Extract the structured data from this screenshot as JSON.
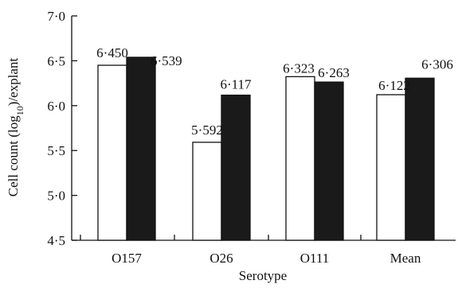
{
  "chart_data": {
    "type": "bar",
    "title": "",
    "xlabel": "Serotype",
    "ylabel_parts": {
      "prefix": "Cell count (log",
      "subscript": "10",
      "suffix": ")/explant"
    },
    "categories": [
      "O157",
      "O26",
      "O111",
      "Mean"
    ],
    "series": [
      {
        "values": [
          6.45,
          5.592,
          6.323,
          6.122
        ],
        "labels": [
          "6·450",
          "5·592",
          "6·323",
          "6·122"
        ],
        "fill": "#ffffff"
      },
      {
        "values": [
          6.539,
          6.117,
          6.263,
          6.306
        ],
        "labels": [
          "6·539",
          "6·117",
          "6·263",
          "6·306"
        ],
        "fill": "#1a1a1a"
      }
    ],
    "yticks": [
      4.5,
      5.0,
      5.5,
      6.0,
      6.5,
      7.0
    ],
    "ytick_labels": [
      "4·5",
      "5·0",
      "5·5",
      "6·0",
      "6·5",
      "7·0"
    ],
    "ylim": [
      4.5,
      7.0
    ],
    "grid": false,
    "legend": "none"
  },
  "colors": {
    "axis": "#111111",
    "bar_outline": "#111111"
  }
}
